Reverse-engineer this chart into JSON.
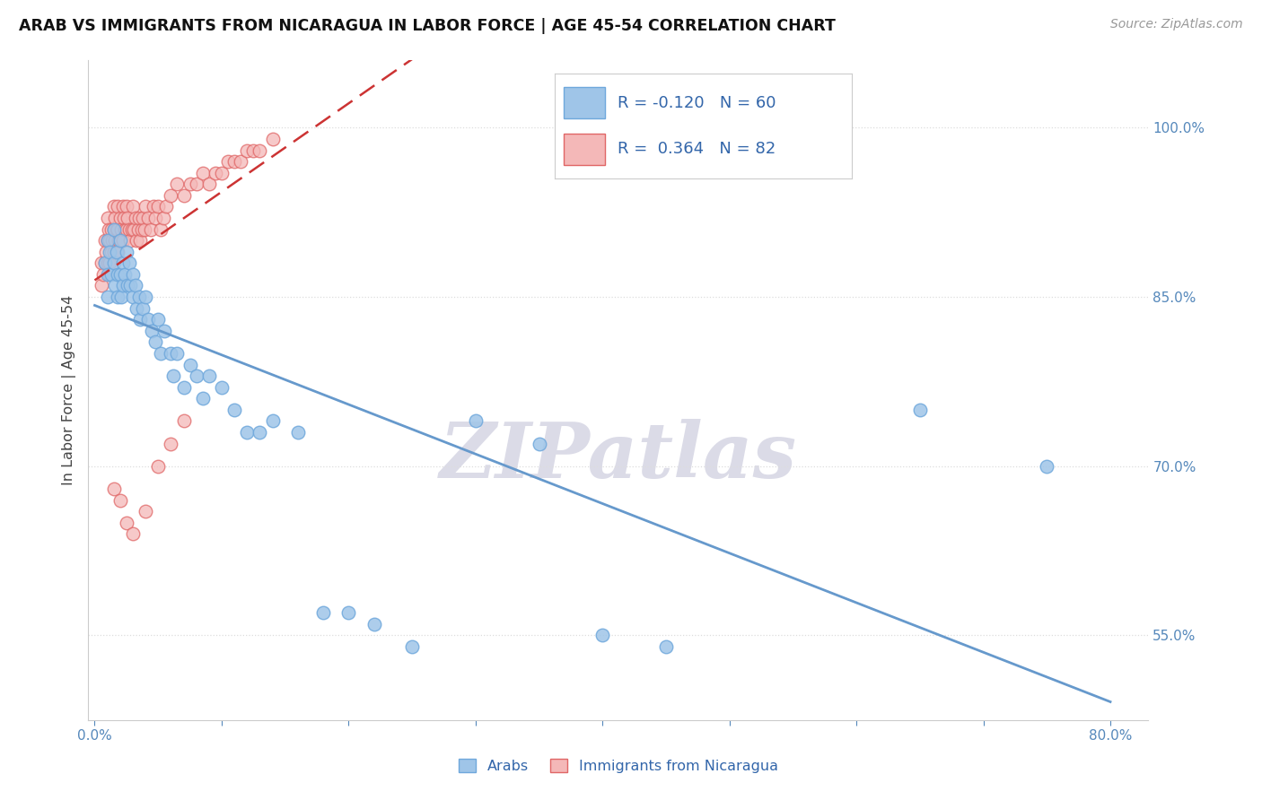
{
  "title": "ARAB VS IMMIGRANTS FROM NICARAGUA IN LABOR FORCE | AGE 45-54 CORRELATION CHART",
  "source": "Source: ZipAtlas.com",
  "ylabel": "In Labor Force | Age 45-54",
  "r_blue": -0.12,
  "n_blue": 60,
  "r_pink": 0.364,
  "n_pink": 82,
  "xlim": [
    -0.005,
    0.83
  ],
  "ylim": [
    0.475,
    1.06
  ],
  "ytick_vals": [
    0.55,
    0.7,
    0.85,
    1.0
  ],
  "ytick_labels": [
    "55.0%",
    "70.0%",
    "85.0%",
    "100.0%"
  ],
  "xtick_vals": [
    0.0,
    0.8
  ],
  "xtick_labels": [
    "0.0%",
    "80.0%"
  ],
  "blue_color": "#9fc5e8",
  "blue_edge_color": "#6fa8dc",
  "pink_color": "#f4b8b8",
  "pink_edge_color": "#e06666",
  "blue_line_color": "#6699cc",
  "pink_line_color": "#cc3333",
  "watermark": "ZIPatlas",
  "watermark_color": "#b8b8d0",
  "legend_text_color": "#3366aa",
  "tick_color": "#5588bb",
  "title_color": "#111111",
  "source_color": "#999999",
  "grid_color": "#dddddd",
  "blue_x": [
    0.008,
    0.01,
    0.01,
    0.01,
    0.012,
    0.013,
    0.015,
    0.015,
    0.016,
    0.017,
    0.018,
    0.018,
    0.02,
    0.02,
    0.021,
    0.022,
    0.022,
    0.024,
    0.025,
    0.026,
    0.027,
    0.028,
    0.03,
    0.03,
    0.032,
    0.033,
    0.035,
    0.036,
    0.038,
    0.04,
    0.042,
    0.045,
    0.048,
    0.05,
    0.052,
    0.055,
    0.06,
    0.062,
    0.065,
    0.07,
    0.075,
    0.08,
    0.085,
    0.09,
    0.1,
    0.11,
    0.12,
    0.13,
    0.14,
    0.16,
    0.18,
    0.2,
    0.22,
    0.25,
    0.3,
    0.35,
    0.4,
    0.45,
    0.65,
    0.75
  ],
  "blue_y": [
    0.88,
    0.9,
    0.87,
    0.85,
    0.89,
    0.87,
    0.91,
    0.88,
    0.86,
    0.89,
    0.87,
    0.85,
    0.9,
    0.87,
    0.85,
    0.88,
    0.86,
    0.87,
    0.89,
    0.86,
    0.88,
    0.86,
    0.87,
    0.85,
    0.86,
    0.84,
    0.85,
    0.83,
    0.84,
    0.85,
    0.83,
    0.82,
    0.81,
    0.83,
    0.8,
    0.82,
    0.8,
    0.78,
    0.8,
    0.77,
    0.79,
    0.78,
    0.76,
    0.78,
    0.77,
    0.75,
    0.73,
    0.73,
    0.74,
    0.73,
    0.57,
    0.57,
    0.56,
    0.54,
    0.74,
    0.72,
    0.55,
    0.54,
    0.75,
    0.7
  ],
  "pink_x": [
    0.005,
    0.005,
    0.007,
    0.008,
    0.008,
    0.009,
    0.01,
    0.01,
    0.01,
    0.011,
    0.012,
    0.012,
    0.012,
    0.013,
    0.013,
    0.014,
    0.015,
    0.015,
    0.015,
    0.016,
    0.016,
    0.017,
    0.018,
    0.018,
    0.018,
    0.019,
    0.02,
    0.02,
    0.021,
    0.022,
    0.022,
    0.023,
    0.024,
    0.025,
    0.025,
    0.026,
    0.027,
    0.028,
    0.029,
    0.03,
    0.031,
    0.032,
    0.033,
    0.034,
    0.035,
    0.036,
    0.037,
    0.038,
    0.039,
    0.04,
    0.042,
    0.044,
    0.046,
    0.048,
    0.05,
    0.052,
    0.054,
    0.056,
    0.06,
    0.065,
    0.07,
    0.075,
    0.08,
    0.085,
    0.09,
    0.095,
    0.1,
    0.105,
    0.11,
    0.115,
    0.12,
    0.125,
    0.13,
    0.14,
    0.015,
    0.02,
    0.025,
    0.03,
    0.04,
    0.05,
    0.06,
    0.07
  ],
  "pink_y": [
    0.88,
    0.86,
    0.87,
    0.9,
    0.88,
    0.89,
    0.92,
    0.9,
    0.88,
    0.91,
    0.9,
    0.88,
    0.87,
    0.91,
    0.89,
    0.9,
    0.93,
    0.91,
    0.89,
    0.92,
    0.9,
    0.91,
    0.93,
    0.91,
    0.89,
    0.9,
    0.92,
    0.9,
    0.91,
    0.93,
    0.9,
    0.92,
    0.91,
    0.93,
    0.91,
    0.92,
    0.91,
    0.9,
    0.91,
    0.93,
    0.91,
    0.92,
    0.9,
    0.91,
    0.92,
    0.9,
    0.91,
    0.92,
    0.91,
    0.93,
    0.92,
    0.91,
    0.93,
    0.92,
    0.93,
    0.91,
    0.92,
    0.93,
    0.94,
    0.95,
    0.94,
    0.95,
    0.95,
    0.96,
    0.95,
    0.96,
    0.96,
    0.97,
    0.97,
    0.97,
    0.98,
    0.98,
    0.98,
    0.99,
    0.68,
    0.67,
    0.65,
    0.64,
    0.66,
    0.7,
    0.72,
    0.74
  ]
}
